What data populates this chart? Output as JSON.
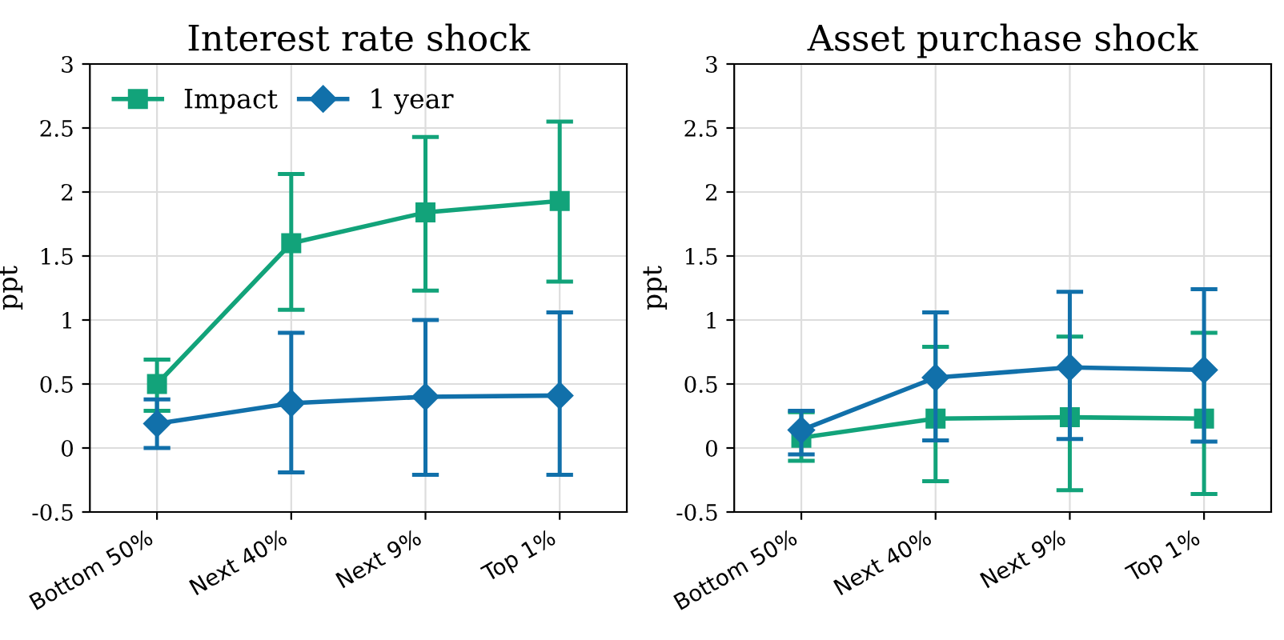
{
  "chart_data": [
    {
      "type": "line",
      "title": "Interest rate shock",
      "ylabel": "ppt",
      "categories": [
        "Bottom 50%",
        "Next 40%",
        "Next 9%",
        "Top 1%"
      ],
      "ylim": [
        -0.5,
        3
      ],
      "yticks": [
        -0.5,
        0,
        0.5,
        1,
        1.5,
        2,
        2.5,
        3
      ],
      "grid": true,
      "legend": "top left",
      "series": [
        {
          "name": "Impact",
          "color": "#12a37a",
          "marker": "square",
          "values": [
            0.5,
            1.6,
            1.84,
            1.93
          ],
          "errors": [
            [
              0.29,
              0.69
            ],
            [
              1.08,
              2.14
            ],
            [
              1.23,
              2.43
            ],
            [
              1.3,
              2.55
            ]
          ]
        },
        {
          "name": "1 year",
          "color": "#1170aa",
          "marker": "diamond",
          "values": [
            0.19,
            0.35,
            0.4,
            0.41
          ],
          "errors": [
            [
              0.0,
              0.38
            ],
            [
              -0.19,
              0.9
            ],
            [
              -0.21,
              1.0
            ],
            [
              -0.21,
              1.06
            ]
          ]
        }
      ]
    },
    {
      "type": "line",
      "title": "Asset purchase shock",
      "ylabel": "ppt",
      "categories": [
        "Bottom 50%",
        "Next 40%",
        "Next 9%",
        "Top 1%"
      ],
      "ylim": [
        -0.5,
        3
      ],
      "yticks": [
        -0.5,
        0,
        0.5,
        1,
        1.5,
        2,
        2.5,
        3
      ],
      "grid": true,
      "series": [
        {
          "color": "#12a37a",
          "marker": "square",
          "values": [
            0.08,
            0.23,
            0.24,
            0.23
          ],
          "errors": [
            [
              -0.1,
              0.28
            ],
            [
              -0.26,
              0.79
            ],
            [
              -0.33,
              0.87
            ],
            [
              -0.36,
              0.9
            ]
          ]
        },
        {
          "color": "#1170aa",
          "marker": "diamond",
          "values": [
            0.14,
            0.55,
            0.63,
            0.61
          ],
          "errors": [
            [
              -0.05,
              0.29
            ],
            [
              0.06,
              1.06
            ],
            [
              0.07,
              1.22
            ],
            [
              0.05,
              1.24
            ]
          ]
        }
      ]
    }
  ]
}
